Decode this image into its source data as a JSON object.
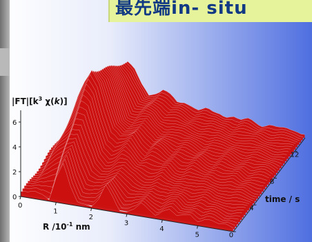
{
  "header": {
    "title": "最先端in- situ"
  },
  "colors": {
    "surface": "#cc1111",
    "mesh": "#f4d0d0",
    "shade": "#d2d2d2",
    "axis": "#222222",
    "bg_left": "#ffffff",
    "bg_right": "#4f6fe0",
    "left_bar": "#8c8c8c",
    "title_bg": "#e6f39a",
    "title_text": "#123a84"
  },
  "chart_data": {
    "type": "surface3d",
    "title": "",
    "zlabel_parts": [
      "|FT|[k",
      "3",
      " χ(",
      "k",
      ")]"
    ],
    "xlabel_parts": [
      "R /10",
      "-1",
      " nm"
    ],
    "ylabel": "time / s",
    "x_ticks": [
      "0",
      "1",
      "2",
      "3",
      "4",
      "5"
    ],
    "y_ticks": [
      "0",
      "4",
      "8",
      "12"
    ],
    "z_ticks": [
      "0",
      "2",
      "4",
      "6"
    ],
    "xlim": [
      0,
      6
    ],
    "ylim": [
      0,
      14
    ],
    "zlim": [
      0,
      7
    ],
    "profiles": [
      {
        "time": 0,
        "R": [
          0,
          0.2,
          0.4,
          0.6,
          0.8,
          1.0,
          1.2,
          1.4,
          1.6,
          1.8,
          2.0,
          2.2,
          2.4,
          2.6,
          2.8,
          3.0,
          3.2,
          3.4,
          3.6,
          3.8,
          4.0,
          4.2,
          4.4,
          4.6,
          4.8,
          5.0,
          5.2,
          5.4,
          5.6,
          5.8,
          6.0
        ],
        "FT": [
          0.4,
          0.3,
          0.6,
          0.5,
          0.2,
          2.1,
          3.1,
          1.4,
          0.4,
          0.3,
          0.2,
          0.8,
          1.9,
          1.2,
          0.3,
          0.2,
          0.5,
          1.0,
          0.6,
          0.4,
          0.8,
          0.9,
          0.5,
          0.6,
          0.8,
          0.5,
          0.6,
          0.5,
          0.4,
          0.5,
          0.4
        ]
      },
      {
        "time": 7,
        "R": [
          0,
          0.2,
          0.4,
          0.6,
          0.8,
          1.0,
          1.2,
          1.4,
          1.6,
          1.8,
          2.0,
          2.2,
          2.4,
          2.6,
          2.8,
          3.0,
          3.2,
          3.4,
          3.6,
          3.8,
          4.0,
          4.2,
          4.4,
          4.6,
          4.8,
          5.0,
          5.2,
          5.4,
          5.6,
          5.8,
          6.0
        ],
        "FT": [
          0.6,
          1.2,
          2.8,
          4.4,
          5.8,
          6.9,
          6.0,
          4.2,
          2.4,
          1.8,
          2.1,
          2.5,
          1.7,
          1.2,
          1.6,
          1.4,
          1.1,
          1.3,
          1.0,
          0.9,
          1.1,
          0.9,
          0.8,
          1.0,
          0.8,
          0.7,
          0.8,
          0.6,
          0.7,
          0.6,
          0.5
        ]
      },
      {
        "time": 14,
        "R": [
          0,
          0.2,
          0.4,
          0.6,
          0.8,
          1.0,
          1.2,
          1.4,
          1.6,
          1.8,
          2.0,
          2.2,
          2.4,
          2.6,
          2.8,
          3.0,
          3.2,
          3.4,
          3.6,
          3.8,
          4.0,
          4.2,
          4.4,
          4.6,
          4.8,
          5.0,
          5.2,
          5.4,
          5.6,
          5.8,
          6.0
        ],
        "FT": [
          0.5,
          0.8,
          1.6,
          2.4,
          3.2,
          3.7,
          3.2,
          2.2,
          1.4,
          1.7,
          2.0,
          1.6,
          1.2,
          1.3,
          1.1,
          0.9,
          1.0,
          0.8,
          0.9,
          0.7,
          0.8,
          0.6,
          0.7,
          0.6,
          0.5,
          0.6,
          0.5,
          0.5,
          0.4,
          0.5,
          0.4
        ]
      }
    ]
  }
}
